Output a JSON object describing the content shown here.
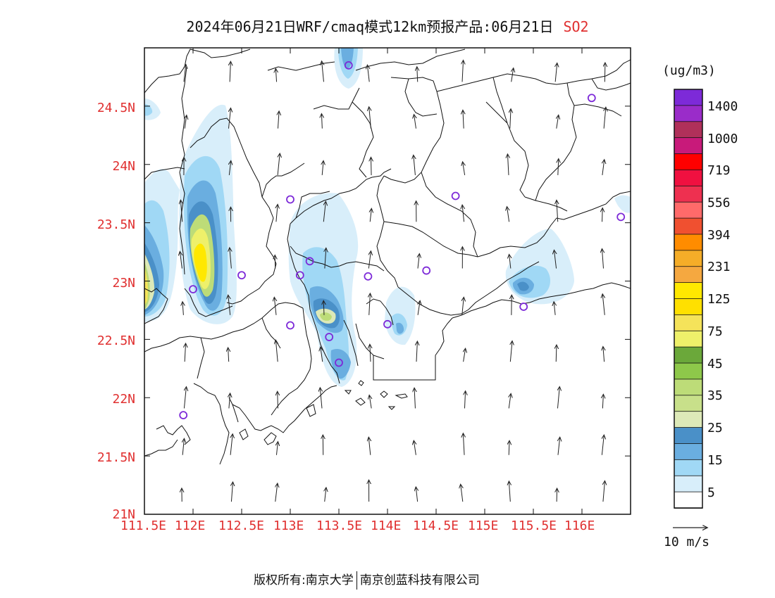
{
  "title": {
    "main": "2024年06月21日WRF/cmaq模式12km预报产品:06月21日",
    "species": "SO2"
  },
  "lat_labels": [
    "24.5N",
    "24N",
    "23.5N",
    "23N",
    "22.5N",
    "22N",
    "21.5N",
    "21N"
  ],
  "lon_labels": [
    "111.5E",
    "112E",
    "112.5E",
    "113E",
    "113.5E",
    "114E",
    "114.5E",
    "115E",
    "115.5E",
    "116E"
  ],
  "colorbar": {
    "unit": "(ug/m3)",
    "labels": [
      "1400",
      "1000",
      "719",
      "556",
      "394",
      "231",
      "125",
      "75",
      "45",
      "35",
      "25",
      "15",
      "5"
    ],
    "colors": [
      "#7d2ad8",
      "#9a2cc9",
      "#b0305a",
      "#c81a7a",
      "#ff0000",
      "#f01040",
      "#ee3050",
      "#ff6a6a",
      "#f05030",
      "#ff8c00",
      "#f5ad28",
      "#f5a840",
      "#ffe800",
      "#ffe000",
      "#f5e35a",
      "#eef06a",
      "#6ba83a",
      "#8ec84a",
      "#bddc78",
      "#c8e08a",
      "#dde9b8",
      "#4a90c8",
      "#6aaee0",
      "#a0d8f5",
      "#d8eefa",
      "#ffffff"
    ]
  },
  "wind_key": {
    "label": "10 m/s"
  },
  "footer": {
    "copyright": "版权所有:南京大学",
    "company": "南京创蓝科技有限公司"
  },
  "stations": [
    [
      113.6,
      24.85
    ],
    [
      116.1,
      24.57
    ],
    [
      113.0,
      23.7
    ],
    [
      114.7,
      23.73
    ],
    [
      116.4,
      23.55
    ],
    [
      112.5,
      23.05
    ],
    [
      113.2,
      23.17
    ],
    [
      113.1,
      23.05
    ],
    [
      113.8,
      23.04
    ],
    [
      114.4,
      23.09
    ],
    [
      112.0,
      22.93
    ],
    [
      113.0,
      22.62
    ],
    [
      113.4,
      22.52
    ],
    [
      114.0,
      22.63
    ],
    [
      115.4,
      22.78
    ],
    [
      113.5,
      22.3
    ],
    [
      111.9,
      21.85
    ]
  ]
}
